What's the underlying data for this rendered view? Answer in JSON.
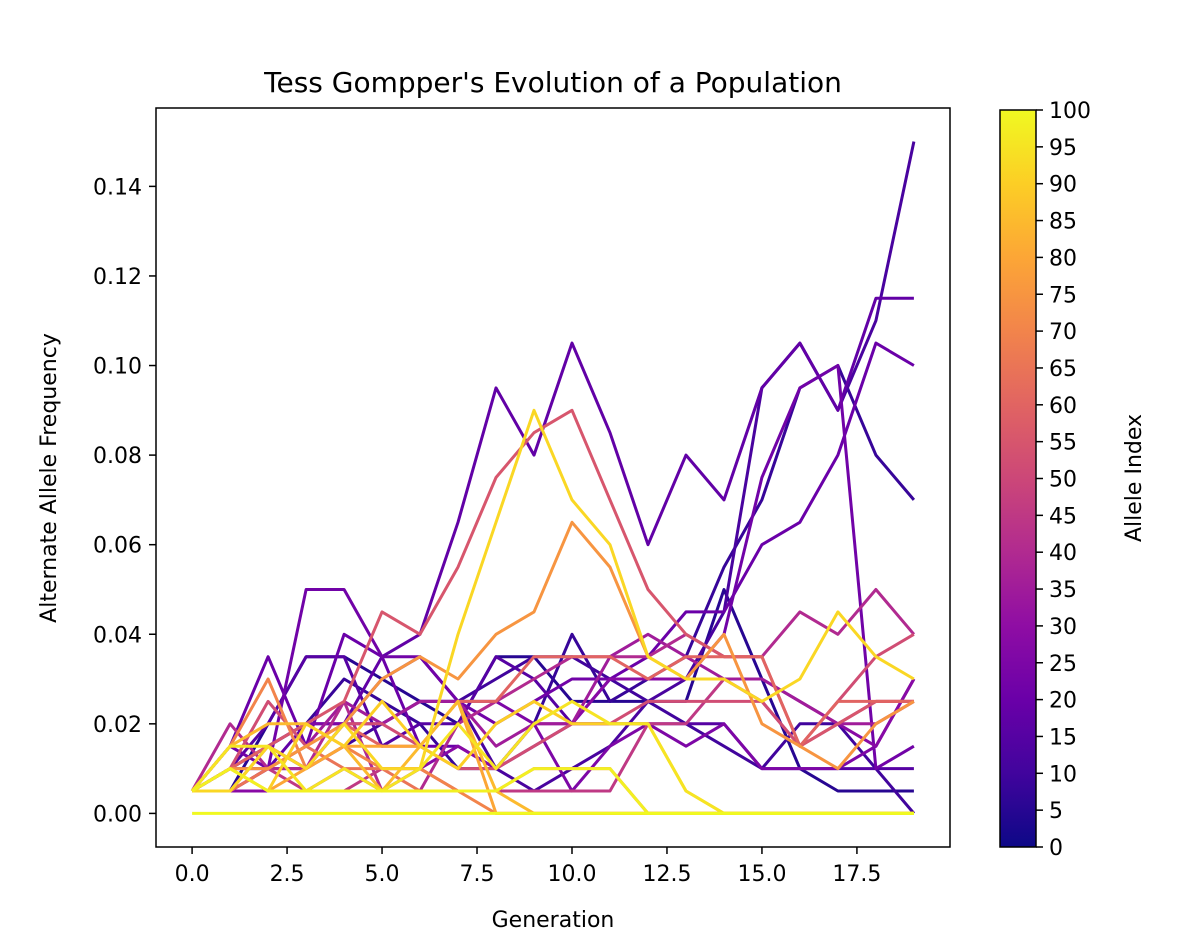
{
  "chart_data": {
    "type": "line",
    "title": "Tess Gompper's Evolution of a Population",
    "xlabel": "Generation",
    "ylabel": "Alternate Allele Frequency",
    "xlim": [
      -0.95,
      19.95
    ],
    "ylim": [
      -0.0075,
      0.1575
    ],
    "x_ticks": [
      "0.0",
      "2.5",
      "5.0",
      "7.5",
      "10.0",
      "12.5",
      "15.0",
      "17.5"
    ],
    "x_tick_values": [
      0,
      2.5,
      5,
      7.5,
      10,
      12.5,
      15,
      17.5
    ],
    "y_ticks": [
      "0.00",
      "0.02",
      "0.04",
      "0.06",
      "0.08",
      "0.10",
      "0.12",
      "0.14"
    ],
    "y_tick_values": [
      0,
      0.02,
      0.04,
      0.06,
      0.08,
      0.1,
      0.12,
      0.14
    ],
    "grid": false,
    "colormap": "plasma",
    "colorbar": {
      "label": "Allele Index",
      "range": [
        0,
        100
      ],
      "ticks": [
        "0",
        "5",
        "10",
        "15",
        "20",
        "25",
        "30",
        "35",
        "40",
        "45",
        "50",
        "55",
        "60",
        "65",
        "70",
        "75",
        "80",
        "85",
        "90",
        "95",
        "100"
      ],
      "tick_values": [
        0,
        5,
        10,
        15,
        20,
        25,
        30,
        35,
        40,
        45,
        50,
        55,
        60,
        65,
        70,
        75,
        80,
        85,
        90,
        95,
        100
      ]
    },
    "x": [
      0,
      1,
      2,
      3,
      4,
      5,
      6,
      7,
      8,
      9,
      10,
      11,
      12,
      13,
      14,
      15,
      16,
      17,
      18,
      19
    ],
    "series": [
      {
        "index": 5,
        "values": [
          0.005,
          0.005,
          0.02,
          0.035,
          0.035,
          0.03,
          0.025,
          0.02,
          0.035,
          0.035,
          0.025,
          0.025,
          0.025,
          0.025,
          0.05,
          0.03,
          0.01,
          0.005,
          0.005,
          0.005
        ]
      },
      {
        "index": 8,
        "values": [
          0.005,
          0.01,
          0.015,
          0.02,
          0.03,
          0.025,
          0.02,
          0.01,
          0.01,
          0.02,
          0.04,
          0.025,
          0.03,
          0.035,
          0.055,
          0.07,
          0.095,
          0.1,
          0.08,
          0.07
        ]
      },
      {
        "index": 10,
        "values": [
          0.005,
          0.01,
          0.015,
          0.01,
          0.015,
          0.02,
          0.025,
          0.025,
          0.03,
          0.035,
          0.035,
          0.03,
          0.025,
          0.02,
          0.015,
          0.01,
          0.02,
          0.02,
          0.01,
          0
        ]
      },
      {
        "index": 12,
        "values": [
          0.005,
          0.005,
          0.01,
          0.01,
          0.02,
          0.03,
          0.035,
          0.025,
          0.01,
          0.005,
          0.01,
          0.015,
          0.025,
          0.03,
          0.045,
          0.095,
          0.105,
          0.09,
          0.11,
          0.15
        ]
      },
      {
        "index": 15,
        "values": [
          0.005,
          0.01,
          0.02,
          0.035,
          0.035,
          0.015,
          0.02,
          0.02,
          0.035,
          0.03,
          0.02,
          0.02,
          0.02,
          0.02,
          0.02,
          0.01,
          0.01,
          0.01,
          0.01,
          0.01
        ]
      },
      {
        "index": 18,
        "values": [
          0.005,
          0.01,
          0.01,
          0.02,
          0.02,
          0.035,
          0.04,
          0.065,
          0.095,
          0.08,
          0.105,
          0.085,
          0.06,
          0.08,
          0.07,
          0.095,
          0.105,
          0.09,
          0.115,
          0.115
        ]
      },
      {
        "index": 20,
        "values": [
          0.005,
          0.015,
          0.035,
          0.015,
          0.04,
          0.035,
          0.015,
          0.015,
          0.01,
          0.015,
          0.02,
          0.03,
          0.035,
          0.045,
          0.045,
          0.06,
          0.065,
          0.08,
          0.105,
          0.1
        ]
      },
      {
        "index": 22,
        "values": [
          0.005,
          0.015,
          0.01,
          0.05,
          0.05,
          0.035,
          0.035,
          0.025,
          0.02,
          0.025,
          0.03,
          0.03,
          0.03,
          0.03,
          0.04,
          0.075,
          0.095,
          0.1,
          0.01,
          0.015
        ]
      },
      {
        "index": 25,
        "values": [
          0.005,
          0.01,
          0.015,
          0.02,
          0.02,
          0.02,
          0.025,
          0.025,
          0.025,
          0.02,
          0.005,
          0.015,
          0.02,
          0.015,
          0.02,
          0.01,
          0.01,
          0.01,
          0.015,
          0.03
        ]
      },
      {
        "index": 28,
        "values": [
          0.005,
          0.005,
          0.005,
          0.005,
          0.01,
          0.005,
          0.01,
          0.015,
          0.01,
          0.02,
          0.02,
          0.03,
          0.03,
          0.03,
          0.03,
          0.03,
          0.025,
          0.02,
          0.015,
          0.03
        ]
      },
      {
        "index": 35,
        "values": [
          0.005,
          0.005,
          0.01,
          0.015,
          0.025,
          0.02,
          0.025,
          0.025,
          0.015,
          0.02,
          0.02,
          0.035,
          0.04,
          0.035,
          0.03,
          0.03,
          0.025,
          0.02,
          0.02,
          0.025
        ]
      },
      {
        "index": 40,
        "values": [
          0.005,
          0.02,
          0.01,
          0.01,
          0.025,
          0.005,
          0.005,
          0.02,
          0.025,
          0.03,
          0.035,
          0.035,
          0.035,
          0.04,
          0.035,
          0.035,
          0.045,
          0.04,
          0.05,
          0.04
        ]
      },
      {
        "index": 45,
        "values": [
          0.005,
          0.005,
          0.01,
          0.005,
          0.005,
          0.01,
          0.01,
          0.005,
          0.005,
          0.005,
          0.005,
          0.005,
          0.02,
          0.02,
          0.03,
          0.025,
          0.015,
          0.02,
          0.025,
          0.025
        ]
      },
      {
        "index": 52,
        "values": [
          0.005,
          0.01,
          0.025,
          0.015,
          0.02,
          0.02,
          0.015,
          0.01,
          0.01,
          0.015,
          0.02,
          0.02,
          0.025,
          0.025,
          0.025,
          0.025,
          0.015,
          0.025,
          0.035,
          0.04
        ]
      },
      {
        "index": 55,
        "values": [
          0.005,
          0.005,
          0.015,
          0.02,
          0.025,
          0.045,
          0.04,
          0.055,
          0.075,
          0.085,
          0.09,
          0.07,
          0.05,
          0.04,
          0.035,
          0.035,
          0.015,
          0.02,
          0.025,
          0.025
        ]
      },
      {
        "index": 60,
        "values": [
          0.005,
          0.01,
          0.015,
          0.01,
          0.02,
          0.015,
          0.015,
          0.025,
          0.025,
          0.035,
          0.035,
          0.035,
          0.03,
          0.035,
          0.035,
          0.035,
          0.015,
          0.025,
          0.025,
          0.025
        ]
      },
      {
        "index": 65,
        "values": [
          0.005,
          0.005,
          0.01,
          0.015,
          0.01,
          0.01,
          0.005,
          0.005,
          0.005,
          0.01,
          0.01,
          0.01,
          0,
          0,
          0,
          0,
          0,
          0,
          0,
          0
        ]
      },
      {
        "index": 70,
        "values": [
          0.005,
          0.015,
          0.03,
          0.01,
          0.015,
          0.01,
          0.01,
          0.005,
          0,
          0,
          0,
          0,
          0,
          0,
          0,
          0,
          0,
          0,
          0,
          0
        ]
      },
      {
        "index": 75,
        "values": [
          0.005,
          0.01,
          0.01,
          0.015,
          0.02,
          0.03,
          0.035,
          0.03,
          0.04,
          0.045,
          0.065,
          0.055,
          0.035,
          0.03,
          0.04,
          0.02,
          0.015,
          0.01,
          0.02,
          0.025
        ]
      },
      {
        "index": 80,
        "values": [
          0.005,
          0.01,
          0.005,
          0.01,
          0.015,
          0.015,
          0.015,
          0.025,
          0,
          0,
          0,
          0,
          0,
          0,
          0,
          0,
          0,
          0,
          0,
          0
        ]
      },
      {
        "index": 85,
        "values": [
          0.005,
          0.015,
          0.02,
          0.02,
          0.015,
          0.005,
          0.015,
          0.025,
          0.005,
          0,
          0,
          0,
          0,
          0,
          0,
          0,
          0,
          0,
          0,
          0
        ]
      },
      {
        "index": 90,
        "values": [
          0.005,
          0.01,
          0.005,
          0.02,
          0.015,
          0.025,
          0.015,
          0.01,
          0.02,
          0.025,
          0.02,
          0.02,
          0.02,
          0.005,
          0,
          0,
          0,
          0,
          0,
          0
        ]
      },
      {
        "index": 92,
        "values": [
          0.005,
          0.005,
          0.015,
          0.01,
          0.02,
          0.01,
          0.01,
          0.04,
          0.065,
          0.09,
          0.07,
          0.06,
          0.035,
          0.03,
          0.03,
          0.025,
          0.03,
          0.045,
          0.035,
          0.03
        ]
      },
      {
        "index": 95,
        "values": [
          0.005,
          0.015,
          0.015,
          0.005,
          0.01,
          0.005,
          0.01,
          0.02,
          0.01,
          0.02,
          0.025,
          0.02,
          0.02,
          0.005,
          0,
          0,
          0,
          0,
          0,
          0
        ]
      },
      {
        "index": 98,
        "values": [
          0.005,
          0.01,
          0.005,
          0.005,
          0.005,
          0.005,
          0.005,
          0.005,
          0.005,
          0.01,
          0.01,
          0.01,
          0,
          0,
          0,
          0,
          0,
          0,
          0,
          0
        ]
      },
      {
        "index": 100,
        "values": [
          0,
          0,
          0,
          0,
          0,
          0,
          0,
          0,
          0,
          0,
          0,
          0,
          0,
          0,
          0,
          0,
          0,
          0,
          0,
          0
        ]
      }
    ]
  }
}
